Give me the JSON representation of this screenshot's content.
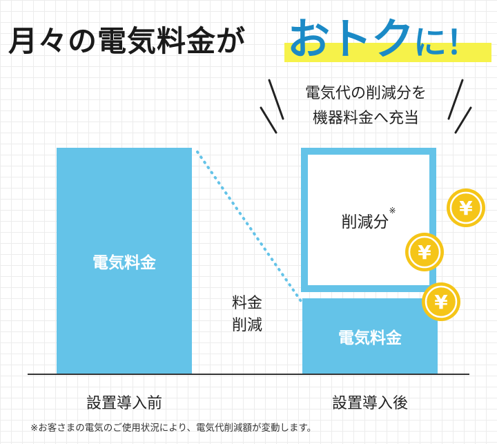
{
  "headline": {
    "normal": "月々の電気料金が",
    "emphasis": "おトク",
    "emphasis_tail": "に！"
  },
  "note": {
    "line1": "電気代の削減分を",
    "line2": "機器料金へ充当"
  },
  "bars": {
    "before_label": "電気料金",
    "after_label": "電気料金",
    "saved_label": "削減分",
    "saved_mark": "※"
  },
  "reduction": {
    "line1": "料金",
    "line2": "削減"
  },
  "categories": {
    "before": "設置導入前",
    "after": "設置導入後"
  },
  "coin_symbol": "¥",
  "footnote": "※お客さまの電気のご使用状況により、電気代削減額が変動します。",
  "colors": {
    "bar": "#64c3e8",
    "headline_emphasis": "#1b8ac6",
    "highlight": "#f6f24a",
    "coin": "#f5c518"
  }
}
